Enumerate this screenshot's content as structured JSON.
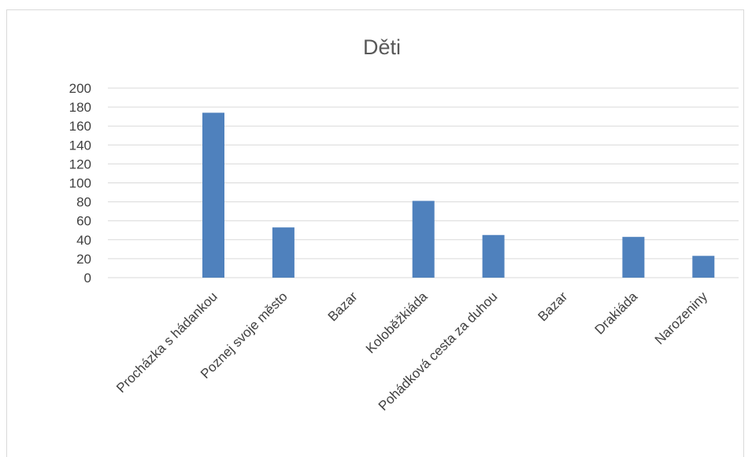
{
  "chart_data": {
    "type": "bar",
    "title": "Děti",
    "categories": [
      "Procházka s hádankou",
      "Poznej svoje město",
      "Bazar",
      "Koloběžkiáda",
      "Pohádková cesta za duhou",
      "Bazar",
      "Drakiáda",
      "Narozeniny"
    ],
    "series": [
      {
        "values": [
          174,
          53,
          0,
          81,
          45,
          0,
          43,
          23
        ]
      }
    ],
    "ylim": [
      0,
      200
    ],
    "yticks": [
      0,
      20,
      40,
      60,
      80,
      100,
      120,
      140,
      160,
      180,
      200
    ],
    "grid": true,
    "legend": "none",
    "bar_color": "#4f81bd",
    "grid_color": "#d9d9d9"
  }
}
